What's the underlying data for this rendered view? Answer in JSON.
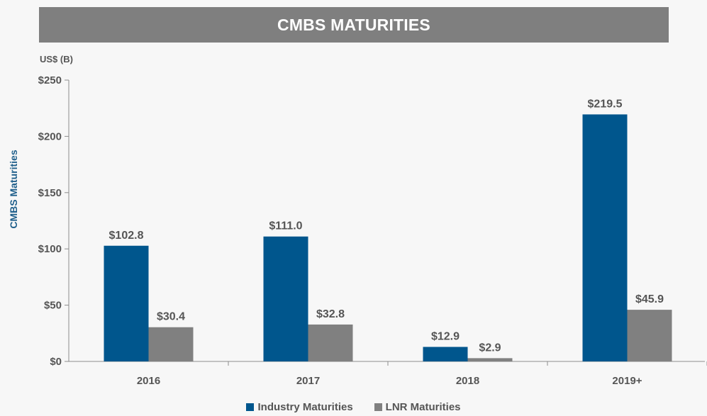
{
  "header": {
    "title": "CMBS MATURITIES"
  },
  "units_label": "US$ (B)",
  "footnote": "",
  "chart_data": {
    "type": "bar",
    "title": "CMBS MATURITIES",
    "ylabel": "CMBS Maturities",
    "xlabel": "",
    "ylim": [
      0,
      250
    ],
    "yticks": [
      0,
      50,
      100,
      150,
      200,
      250
    ],
    "ytick_labels": [
      "$0",
      "$50",
      "$100",
      "$150",
      "$200",
      "$250"
    ],
    "categories": [
      "2016",
      "2017",
      "2018",
      "2019+"
    ],
    "series": [
      {
        "name": "Industry Maturities",
        "color": "#00568d",
        "values": [
          102.8,
          111.0,
          12.9,
          219.5
        ],
        "labels": [
          "$102.8",
          "$111.0",
          "$12.9",
          "$219.5"
        ]
      },
      {
        "name": "LNR Maturities",
        "color": "#808080",
        "values": [
          30.4,
          32.8,
          2.9,
          45.9
        ],
        "labels": [
          "$30.4",
          "$32.8",
          "$2.9",
          "$45.9"
        ]
      }
    ],
    "grid": false,
    "legend_position": "bottom"
  }
}
